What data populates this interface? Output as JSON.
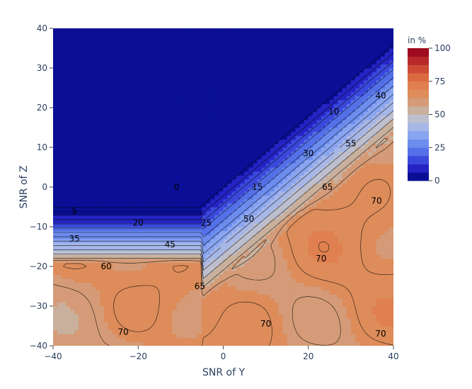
{
  "chart_data": {
    "type": "contour",
    "title": "",
    "xlabel": "SNR of Y",
    "ylabel": "SNR of Z",
    "xlim": [
      -40,
      40
    ],
    "ylim": [
      -40,
      40
    ],
    "x_ticks": [
      -40,
      -20,
      0,
      20,
      40
    ],
    "y_ticks": [
      -40,
      -30,
      -20,
      -10,
      0,
      10,
      20,
      30,
      40
    ],
    "x_tick_labels": [
      "−40",
      "−20",
      "0",
      "20",
      "40"
    ],
    "y_tick_labels": [
      "−40",
      "−30",
      "−20",
      "−10",
      "0",
      "10",
      "20",
      "30",
      "40"
    ],
    "colorbar": {
      "title": "in %",
      "min": 0,
      "max": 100,
      "tick_values": [
        0,
        25,
        50,
        75,
        100
      ],
      "tick_labels": [
        "0",
        "25",
        "50",
        "75",
        "100"
      ],
      "colors": [
        "#0a0f96",
        "#2424c4",
        "#3b48dc",
        "#5470e8",
        "#6c8cee",
        "#8aa5f0",
        "#a6b6e6",
        "#bdbfcf",
        "#c9b09c",
        "#d59b78",
        "#dd8c5a",
        "#e08050",
        "#dc6a40",
        "#cc4a36",
        "#b82a2a",
        "#9e0a1e"
      ]
    },
    "contour_levels": [
      0,
      5,
      10,
      15,
      20,
      25,
      30,
      35,
      40,
      45,
      50,
      55,
      60,
      65,
      70
    ],
    "contour_labels": [
      {
        "text": "0",
        "x": -11,
        "y": 0
      },
      {
        "text": "5",
        "x": -35,
        "y": -6
      },
      {
        "text": "10",
        "x": 26,
        "y": 19
      },
      {
        "text": "15",
        "x": 8,
        "y": 0
      },
      {
        "text": "20",
        "x": -20,
        "y": -9
      },
      {
        "text": "25",
        "x": -4,
        "y": -9
      },
      {
        "text": "30",
        "x": 20,
        "y": 8.5
      },
      {
        "text": "35",
        "x": -35,
        "y": -13
      },
      {
        "text": "40",
        "x": 37,
        "y": 23
      },
      {
        "text": "45",
        "x": -12.5,
        "y": -14.5
      },
      {
        "text": "50",
        "x": 6,
        "y": -8
      },
      {
        "text": "55",
        "x": 30,
        "y": 11
      },
      {
        "text": "60",
        "x": -27.5,
        "y": -20
      },
      {
        "text": "65",
        "x": -5.5,
        "y": -25
      },
      {
        "text": "65",
        "x": 24.5,
        "y": 0
      },
      {
        "text": "70",
        "x": 36,
        "y": -3.5
      },
      {
        "text": "70",
        "x": 23,
        "y": -18
      },
      {
        "text": "70",
        "x": 10,
        "y": -34.5
      },
      {
        "text": "70",
        "x": -23.5,
        "y": -36.5
      },
      {
        "text": "70",
        "x": 37,
        "y": -37
      }
    ]
  }
}
